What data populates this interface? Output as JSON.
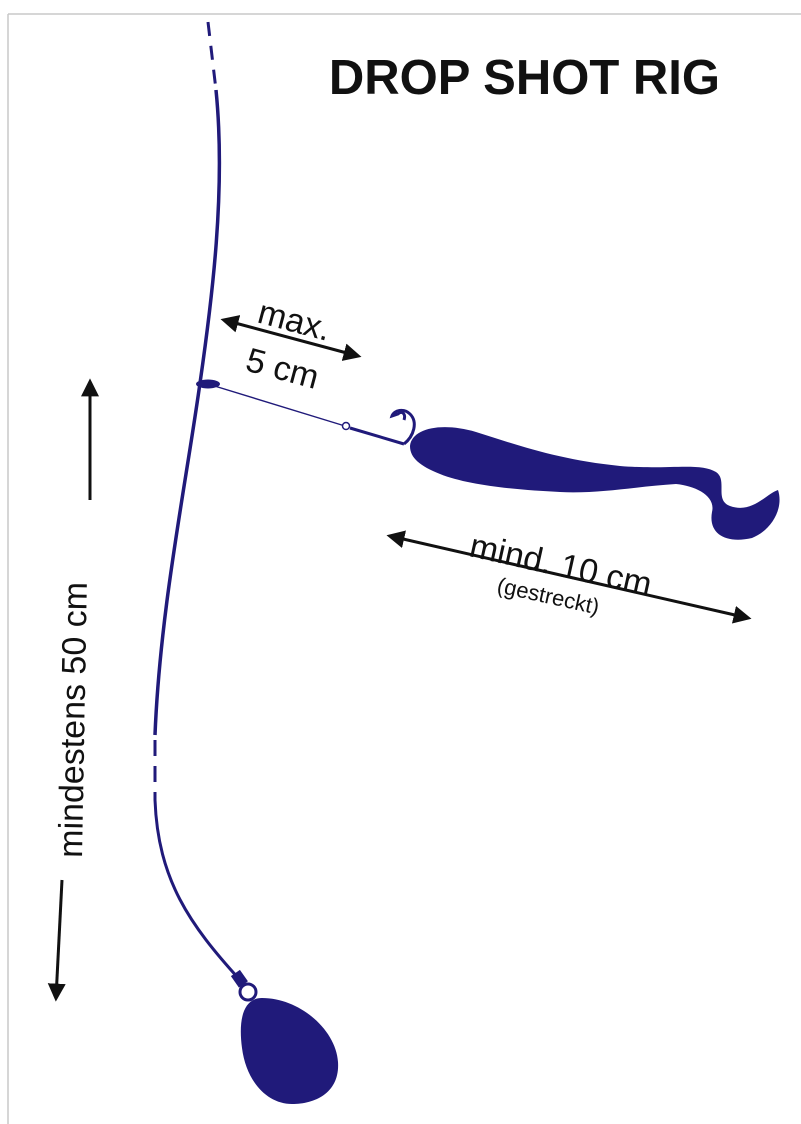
{
  "title": "DROP SHOT RIG",
  "labels": {
    "leader_distance_line1": "max.",
    "leader_distance_line2": "5 cm",
    "bait_length": "mind. 10 cm",
    "bait_length_note": "(gestreckt)",
    "weight_distance": "mindestens 50 cm"
  },
  "colors": {
    "rig": "#201a7a",
    "arrow": "#111111",
    "frame": "#c8c8c8"
  }
}
